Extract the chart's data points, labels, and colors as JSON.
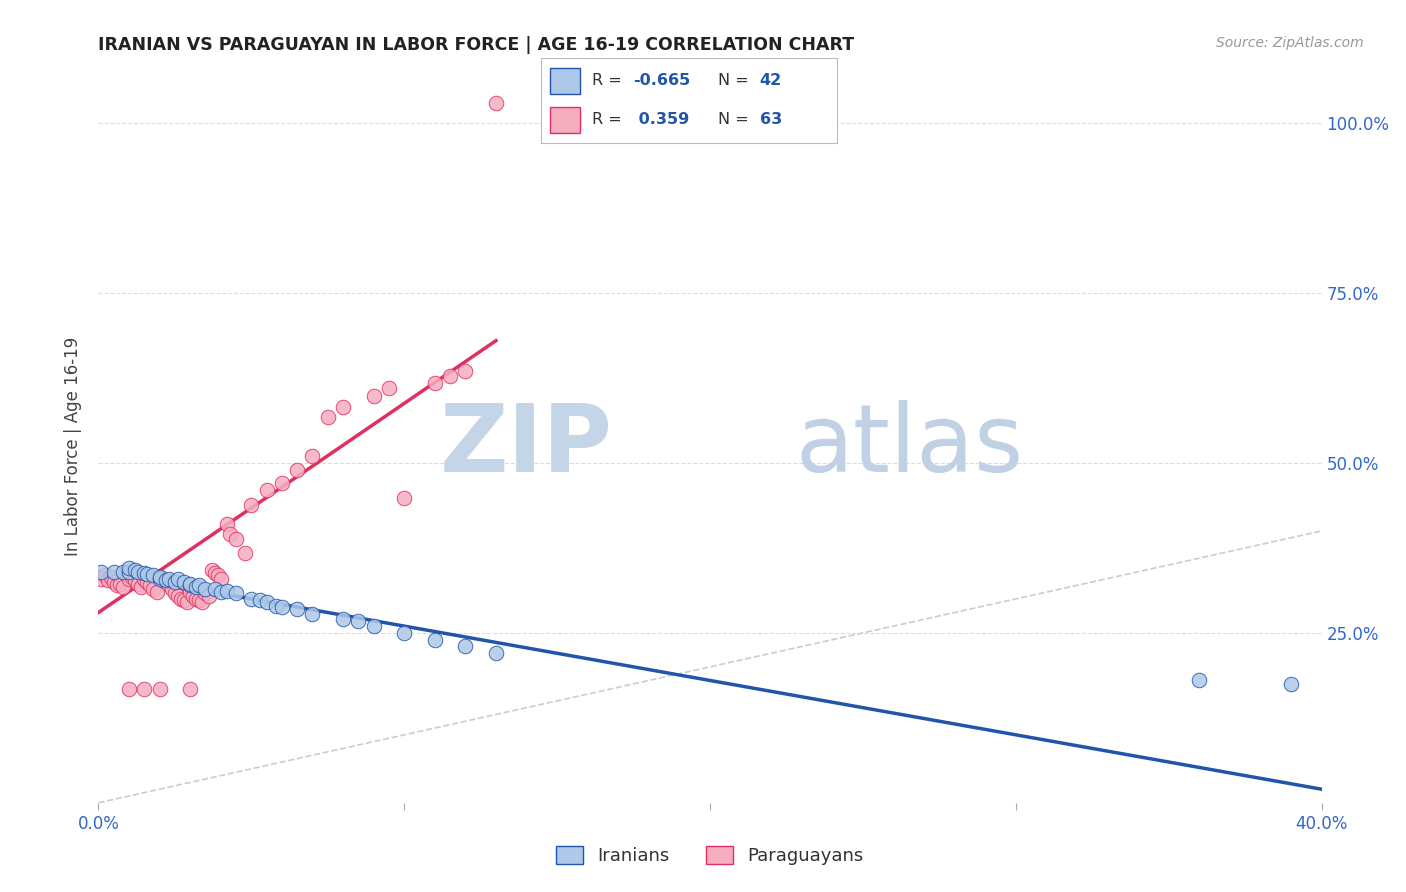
{
  "title": "IRANIAN VS PARAGUAYAN IN LABOR FORCE | AGE 16-19 CORRELATION CHART",
  "source": "Source: ZipAtlas.com",
  "ylabel": "In Labor Force | Age 16-19",
  "xlim": [
    0.0,
    0.4
  ],
  "ylim": [
    0.0,
    1.05
  ],
  "iranian_color": "#adc8e8",
  "paraguayan_color": "#f5adc0",
  "iranian_line_color": "#2255aa",
  "paraguayan_line_color": "#e03060",
  "diagonal_color": "#cccccc",
  "R_iranian": -0.665,
  "N_iranian": 42,
  "R_paraguayan": 0.359,
  "N_paraguayan": 63,
  "background_color": "#ffffff",
  "grid_color": "#dddddd",
  "watermark_zip_color": "#c5d5e8",
  "watermark_atlas_color": "#c0d0e5",
  "iranian_x": [
    0.001,
    0.005,
    0.008,
    0.01,
    0.01,
    0.012,
    0.013,
    0.015,
    0.016,
    0.018,
    0.02,
    0.02,
    0.022,
    0.023,
    0.025,
    0.026,
    0.028,
    0.03,
    0.03,
    0.032,
    0.033,
    0.035,
    0.038,
    0.04,
    0.042,
    0.045,
    0.05,
    0.053,
    0.055,
    0.058,
    0.06,
    0.065,
    0.07,
    0.08,
    0.085,
    0.09,
    0.1,
    0.11,
    0.12,
    0.13,
    0.36,
    0.39
  ],
  "iranian_y": [
    0.34,
    0.34,
    0.34,
    0.34,
    0.345,
    0.342,
    0.34,
    0.338,
    0.336,
    0.335,
    0.33,
    0.332,
    0.328,
    0.33,
    0.325,
    0.33,
    0.325,
    0.32,
    0.322,
    0.318,
    0.32,
    0.315,
    0.315,
    0.31,
    0.312,
    0.308,
    0.3,
    0.298,
    0.295,
    0.29,
    0.288,
    0.285,
    0.278,
    0.27,
    0.268,
    0.26,
    0.25,
    0.24,
    0.23,
    0.22,
    0.18,
    0.175
  ],
  "paraguayan_x": [
    0.001,
    0.002,
    0.003,
    0.004,
    0.005,
    0.006,
    0.007,
    0.008,
    0.009,
    0.01,
    0.01,
    0.01,
    0.011,
    0.012,
    0.013,
    0.014,
    0.015,
    0.015,
    0.016,
    0.017,
    0.018,
    0.019,
    0.02,
    0.02,
    0.021,
    0.022,
    0.023,
    0.024,
    0.025,
    0.026,
    0.027,
    0.028,
    0.029,
    0.03,
    0.03,
    0.031,
    0.032,
    0.033,
    0.034,
    0.035,
    0.036,
    0.037,
    0.038,
    0.039,
    0.04,
    0.042,
    0.043,
    0.045,
    0.048,
    0.05,
    0.055,
    0.06,
    0.065,
    0.07,
    0.075,
    0.08,
    0.09,
    0.095,
    0.1,
    0.11,
    0.115,
    0.12,
    0.13
  ],
  "paraguayan_y": [
    0.33,
    0.335,
    0.328,
    0.332,
    0.325,
    0.32,
    0.322,
    0.318,
    0.34,
    0.335,
    0.33,
    0.168,
    0.332,
    0.328,
    0.322,
    0.318,
    0.33,
    0.168,
    0.325,
    0.32,
    0.315,
    0.31,
    0.332,
    0.168,
    0.328,
    0.325,
    0.32,
    0.315,
    0.308,
    0.305,
    0.3,
    0.298,
    0.295,
    0.31,
    0.168,
    0.305,
    0.3,
    0.298,
    0.295,
    0.308,
    0.305,
    0.342,
    0.338,
    0.335,
    0.33,
    0.41,
    0.395,
    0.388,
    0.368,
    0.438,
    0.46,
    0.47,
    0.49,
    0.51,
    0.568,
    0.582,
    0.598,
    0.61,
    0.448,
    0.618,
    0.628,
    0.635,
    1.03
  ],
  "para_line_x": [
    0.0,
    0.13
  ],
  "para_line_y": [
    0.28,
    0.68
  ],
  "iran_line_x": [
    0.0,
    0.4
  ],
  "iran_line_y": [
    0.34,
    0.02
  ]
}
